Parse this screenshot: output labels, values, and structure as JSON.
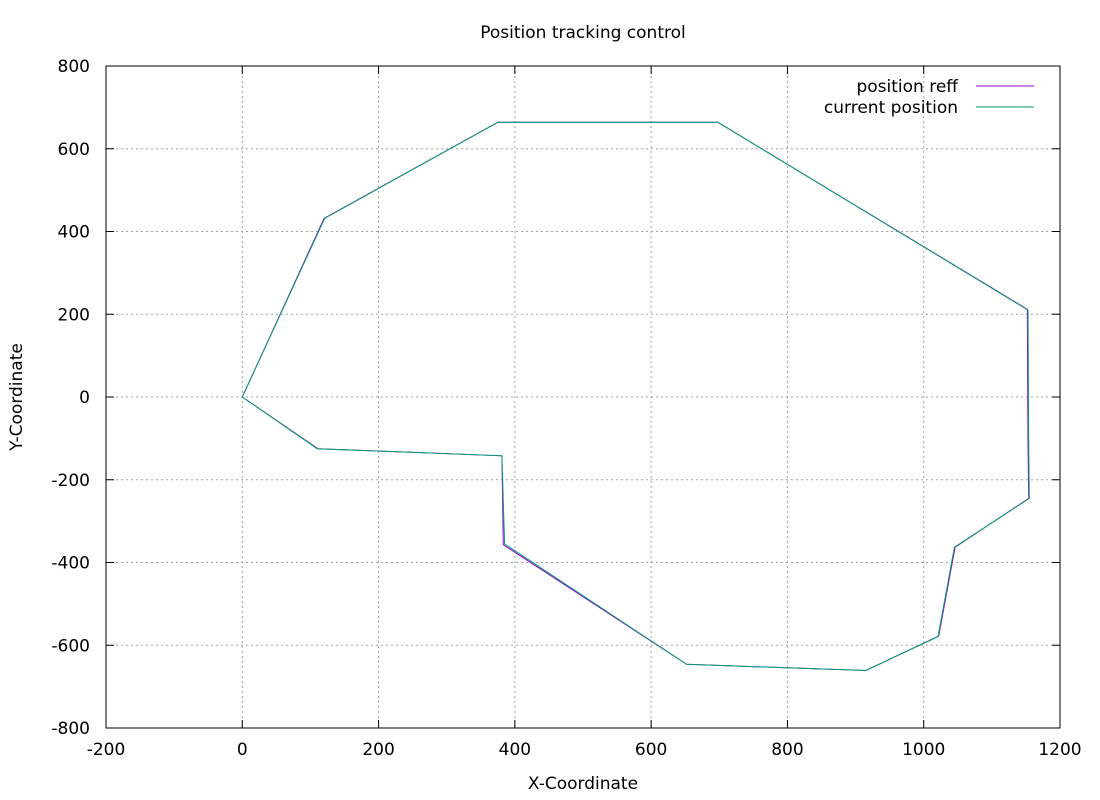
{
  "chart_data": {
    "type": "line",
    "title": "Position tracking control",
    "xlabel": "X-Coordinate",
    "ylabel": "Y-Coordinate",
    "xlim": [
      -200,
      1200
    ],
    "ylim": [
      -800,
      800
    ],
    "xticks": [
      -200,
      0,
      200,
      400,
      600,
      800,
      1000,
      1200
    ],
    "yticks": [
      -800,
      -600,
      -400,
      -200,
      0,
      200,
      400,
      600,
      800
    ],
    "grid": true,
    "legend_position": "top-right",
    "series": [
      {
        "name": "position reff",
        "color": "#9400d3",
        "x": [
          0,
          120,
          375,
          698,
          1152,
          1153,
          1154,
          1046,
          1022,
          915,
          652,
          383,
          381,
          111,
          0
        ],
        "y": [
          0,
          432,
          664,
          664,
          212,
          -110,
          -245,
          -363,
          -578,
          -661,
          -646,
          -357,
          -142,
          -125,
          0
        ]
      },
      {
        "name": "current position",
        "color": "#009e73",
        "x": [
          0,
          121,
          375,
          698,
          1153,
          1154,
          1155,
          1045,
          1021,
          915,
          652,
          385,
          381,
          110,
          0
        ],
        "y": [
          0,
          432,
          664,
          664,
          210,
          -110,
          -245,
          -363,
          -579,
          -661,
          -646,
          -355,
          -142,
          -125,
          0
        ]
      }
    ]
  }
}
